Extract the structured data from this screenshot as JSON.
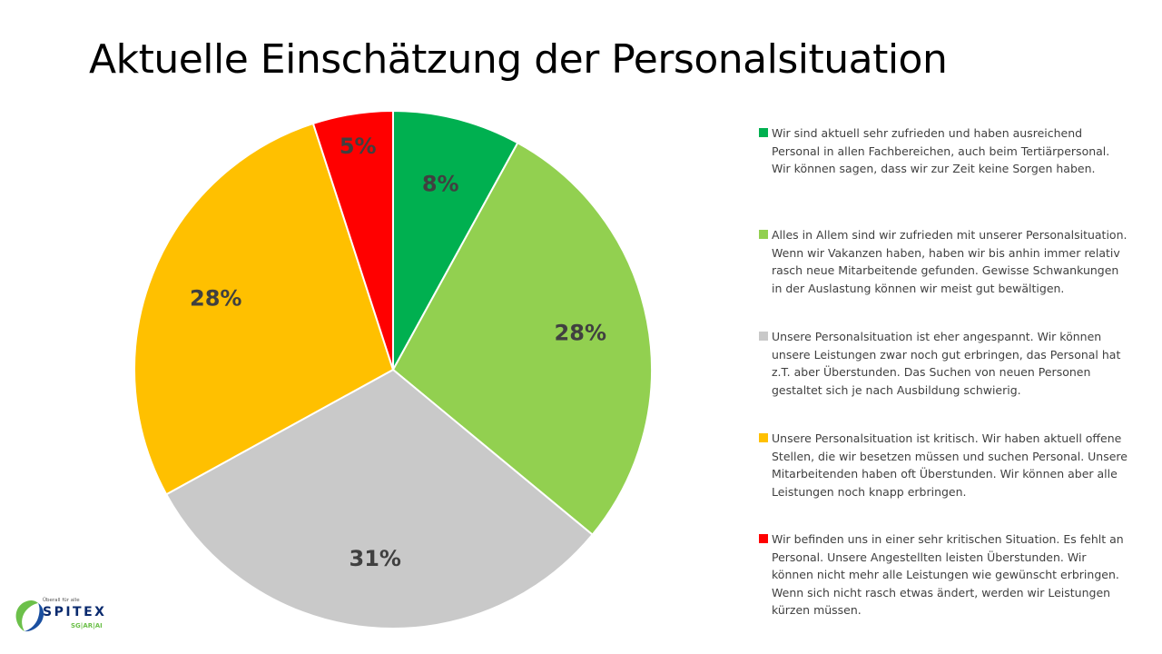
{
  "title": "Aktuelle Einschätzung der Personalsituation",
  "chart_data": {
    "type": "pie",
    "slices": [
      {
        "label": "8%",
        "value": 8,
        "color": "#00B050",
        "legend": "Wir sind aktuell sehr zufrieden und haben ausreichend Personal in allen Fachbereichen, auch beim Tertiärpersonal. Wir können sagen, dass wir zur Zeit keine Sorgen haben."
      },
      {
        "label": "28%",
        "value": 28,
        "color": "#92D050",
        "legend": "Alles in Allem sind wir zufrieden mit unserer Personalsituation. Wenn wir Vakanzen haben, haben wir bis anhin immer relativ rasch neue Mitarbeitende gefunden. Gewisse Schwankungen in der Auslastung können wir meist gut bewältigen."
      },
      {
        "label": "31%",
        "value": 31,
        "color": "#C9C9C9",
        "legend": "Unsere Personalsituation ist eher angespannt. Wir können unsere Leistungen zwar noch gut erbringen, das Personal hat z.T. aber Überstunden. Das Suchen von neuen Personen gestaltet sich je nach Ausbildung schwierig."
      },
      {
        "label": "28%",
        "value": 28,
        "color": "#FFC000",
        "legend": "Unsere Personalsituation ist kritisch. Wir haben aktuell offene Stellen, die wir besetzen müssen und suchen Personal. Unsere Mitarbeitenden haben oft Überstunden. Wir können aber alle Leistungen noch knapp erbringen."
      },
      {
        "label": "5%",
        "value": 5,
        "color": "#FF0000",
        "legend": "Wir befinden uns in einer sehr kritischen Situation. Es fehlt an Personal. Unsere Angestellten leisten Überstunden. Wir können nicht mehr alle Leistungen wie gewünscht erbringen. Wenn sich nicht rasch etwas ändert, werden wir Leistungen kürzen müssen."
      }
    ],
    "legend_position": "right"
  },
  "logo": {
    "tagline": "Überall für alle",
    "name": "SPITEX",
    "region": "SG|AR|AI"
  }
}
